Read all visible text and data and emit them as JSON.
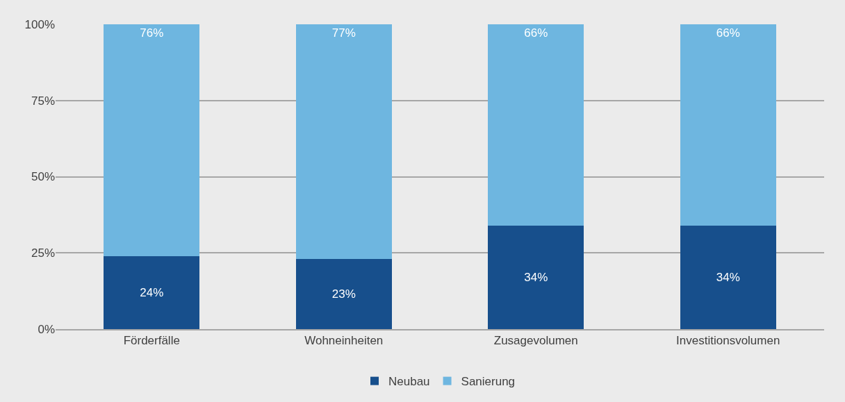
{
  "chart_data": {
    "type": "bar",
    "stacked": true,
    "categories": [
      "Förderfälle",
      "Wohneinheiten",
      "Zusagevolumen",
      "Investitionsvolumen"
    ],
    "series": [
      {
        "name": "Neubau",
        "color": "#174f8c",
        "values": [
          24,
          23,
          34,
          34
        ],
        "value_labels": [
          "24%",
          "23%",
          "34%",
          "34%"
        ]
      },
      {
        "name": "Sanierung",
        "color": "#6eb6e0",
        "values": [
          76,
          77,
          66,
          66
        ],
        "value_labels": [
          "76%",
          "77%",
          "66%",
          "66%"
        ]
      }
    ],
    "ylim": [
      0,
      100
    ],
    "yticks": [
      {
        "value": 0,
        "label": "0%"
      },
      {
        "value": 25,
        "label": "25%"
      },
      {
        "value": 50,
        "label": "50%"
      },
      {
        "value": 75,
        "label": "75%"
      },
      {
        "value": 100,
        "label": "100%"
      }
    ],
    "grid": "y",
    "legend": "bottom"
  }
}
